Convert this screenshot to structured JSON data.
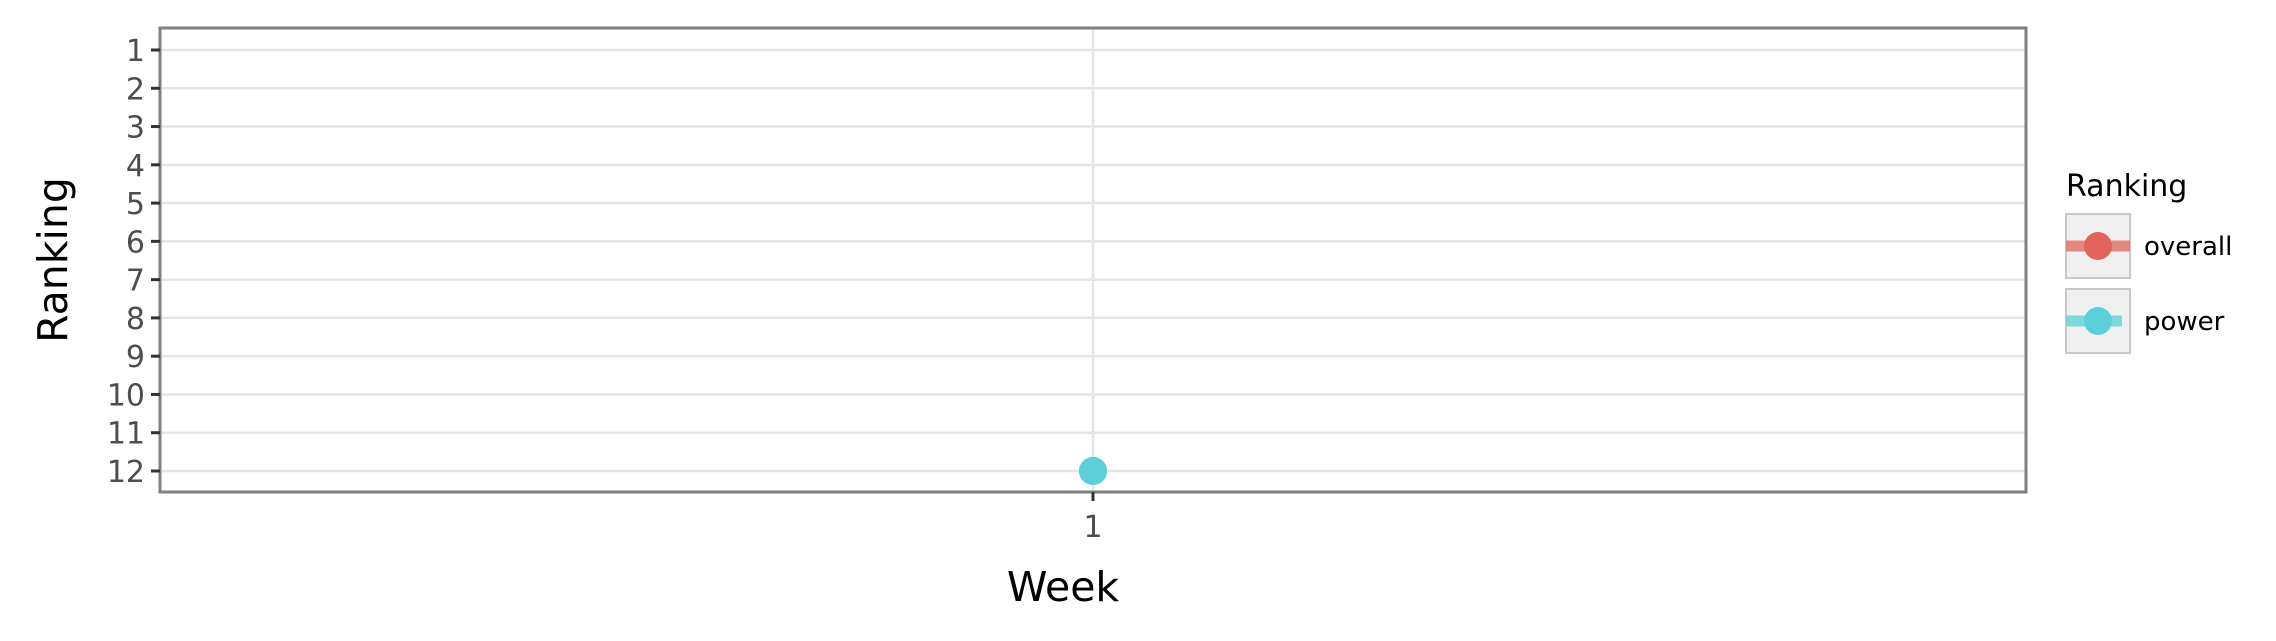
{
  "chart_data": {
    "type": "line",
    "xlabel": "Week",
    "ylabel": "Ranking",
    "x_ticks": [
      "1"
    ],
    "y_ticks": [
      "1",
      "2",
      "3",
      "4",
      "5",
      "6",
      "7",
      "8",
      "9",
      "10",
      "11",
      "12"
    ],
    "ylim": [
      1,
      12
    ],
    "y_reversed": true,
    "grid": true,
    "legend": {
      "title": "Ranking",
      "placement": "right",
      "entries": [
        "overall",
        "power"
      ]
    },
    "series": [
      {
        "name": "overall",
        "color": "#e0645c",
        "x": [
          1
        ],
        "y": [
          12
        ]
      },
      {
        "name": "power",
        "color": "#5bd0da",
        "x": [
          1
        ],
        "y": [
          12
        ]
      }
    ]
  }
}
